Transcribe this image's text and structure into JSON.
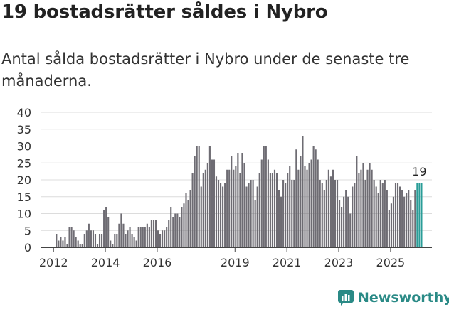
{
  "headline": "19 bostadsrätter såldes i Nybro",
  "subtitle": "Antal sålda bostadsrätter i Nybro under de senaste tre månaderna.",
  "brand": {
    "name": "Newsworthy",
    "color": "#2a8a86"
  },
  "chart_data": {
    "type": "bar",
    "title": "19 bostadsrätter såldes i Nybro",
    "subtitle": "Antal sålda bostadsrätter i Nybro under de senaste tre månaderna.",
    "xlabel": "",
    "ylabel": "",
    "ylim": [
      0,
      40
    ],
    "yticks": [
      "0",
      "5",
      "10",
      "15",
      "20",
      "25",
      "30",
      "35",
      "40"
    ],
    "xticks": [
      "2012",
      "2014",
      "2016",
      "2019",
      "2021",
      "2023",
      "2025"
    ],
    "xtick_positions": [
      2012,
      2014,
      2016,
      2019,
      2021,
      2023,
      2025
    ],
    "start": 2011.5,
    "step": 0.08333,
    "grid": true,
    "bar_color": "#6e6c73",
    "highlight_color": "#2a9d98",
    "highlight_last": 3,
    "annotation": "19",
    "values": [
      0,
      0,
      0,
      0,
      0,
      0,
      0,
      4,
      2,
      3,
      2,
      3,
      1,
      6,
      6,
      5,
      3,
      2,
      1,
      1,
      4,
      5,
      7,
      5,
      5,
      4,
      1,
      4,
      4,
      11,
      12,
      9,
      2,
      1,
      4,
      4,
      7,
      10,
      7,
      4,
      5,
      6,
      4,
      3,
      2,
      6,
      6,
      6,
      6,
      7,
      6,
      8,
      8,
      8,
      5,
      4,
      5,
      5,
      6,
      8,
      12,
      9,
      10,
      10,
      9,
      12,
      13,
      16,
      14,
      17,
      22,
      27,
      30,
      30,
      18,
      22,
      23,
      25,
      30,
      26,
      26,
      21,
      20,
      19,
      18,
      19,
      23,
      23,
      27,
      23,
      24,
      28,
      22,
      28,
      25,
      18,
      19,
      20,
      20,
      14,
      18,
      22,
      26,
      30,
      30,
      26,
      22,
      22,
      23,
      22,
      17,
      15,
      20,
      19,
      22,
      24,
      20,
      20,
      29,
      23,
      27,
      33,
      24,
      23,
      25,
      26,
      30,
      29,
      26,
      20,
      19,
      17,
      20,
      23,
      21,
      23,
      20,
      20,
      14,
      12,
      15,
      17,
      15,
      10,
      18,
      19,
      27,
      22,
      23,
      25,
      20,
      23,
      25,
      23,
      20,
      18,
      16,
      20,
      19,
      20,
      17,
      11,
      13,
      15,
      19,
      19,
      18,
      17,
      15,
      16,
      17,
      14,
      11,
      17,
      19,
      19,
      19
    ]
  }
}
